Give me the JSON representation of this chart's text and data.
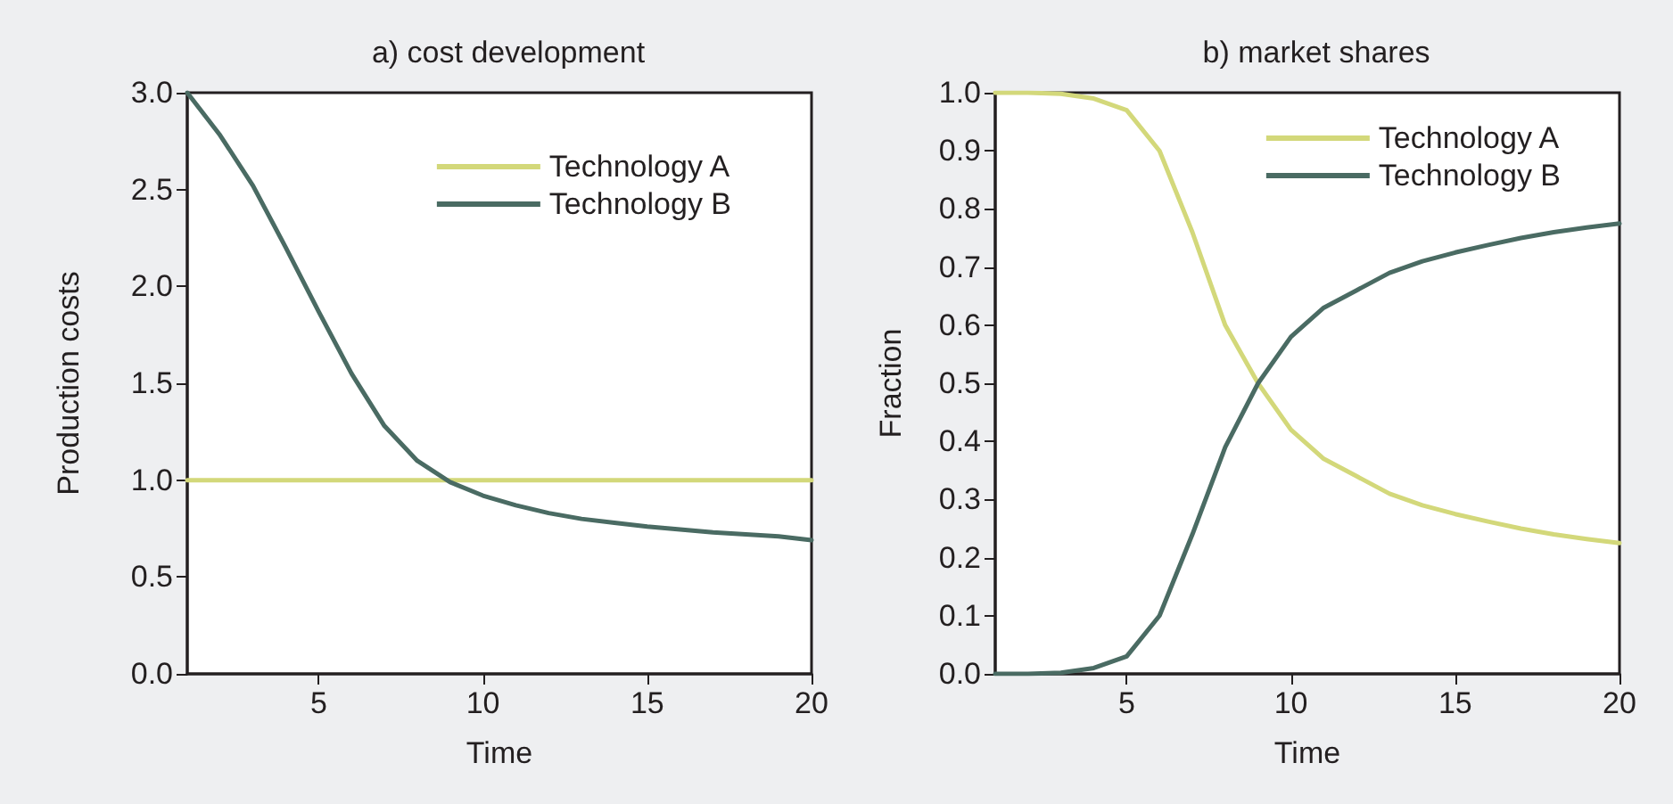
{
  "chart_data": [
    {
      "type": "line",
      "title": "a) cost development",
      "xlabel": "Time",
      "ylabel": "Production costs",
      "x": [
        1,
        2,
        3,
        4,
        5,
        6,
        7,
        8,
        9,
        10,
        11,
        12,
        13,
        14,
        15,
        16,
        17,
        18,
        19,
        20
      ],
      "series": [
        {
          "name": "Technology A",
          "color": "#d3d87a",
          "values": [
            1.0,
            1.0,
            1.0,
            1.0,
            1.0,
            1.0,
            1.0,
            1.0,
            1.0,
            1.0,
            1.0,
            1.0,
            1.0,
            1.0,
            1.0,
            1.0,
            1.0,
            1.0,
            1.0,
            1.0
          ]
        },
        {
          "name": "Technology B",
          "color": "#4a6b63",
          "values": [
            3.0,
            2.78,
            2.52,
            2.2,
            1.87,
            1.55,
            1.28,
            1.1,
            0.99,
            0.92,
            0.87,
            0.83,
            0.8,
            0.78,
            0.76,
            0.745,
            0.73,
            0.72,
            0.71,
            0.69
          ]
        }
      ],
      "xlim": [
        1,
        20
      ],
      "xticks": [
        5,
        10,
        15,
        20
      ],
      "ylim": [
        0,
        3
      ],
      "yticks": [
        {
          "value": 0,
          "label": "0.0"
        },
        {
          "value": 0.5,
          "label": "0.5"
        },
        {
          "value": 1,
          "label": "1.0"
        },
        {
          "value": 1.5,
          "label": "1.5"
        },
        {
          "value": 2,
          "label": "2.0"
        },
        {
          "value": 2.5,
          "label": "2.5"
        },
        {
          "value": 3,
          "label": "3.0"
        }
      ],
      "grid": false,
      "legend": "top right",
      "marker": "none",
      "line_style": "solid"
    },
    {
      "type": "line",
      "title": "b) market shares",
      "xlabel": "Time",
      "ylabel": "Fraction",
      "x": [
        1,
        2,
        3,
        4,
        5,
        6,
        7,
        8,
        9,
        10,
        11,
        12,
        13,
        14,
        15,
        16,
        17,
        18,
        19,
        20
      ],
      "series": [
        {
          "name": "Technology A",
          "color": "#d3d87a",
          "values": [
            1.0,
            1.0,
            0.998,
            0.99,
            0.97,
            0.9,
            0.76,
            0.6,
            0.5,
            0.42,
            0.37,
            0.34,
            0.31,
            0.29,
            0.275,
            0.262,
            0.25,
            0.24,
            0.232,
            0.225
          ]
        },
        {
          "name": "Technology B",
          "color": "#4a6b63",
          "values": [
            0.0,
            0.0,
            0.002,
            0.01,
            0.03,
            0.1,
            0.24,
            0.39,
            0.5,
            0.58,
            0.63,
            0.66,
            0.69,
            0.71,
            0.725,
            0.738,
            0.75,
            0.76,
            0.768,
            0.775
          ]
        }
      ],
      "xlim": [
        1,
        20
      ],
      "xticks": [
        5,
        10,
        15,
        20
      ],
      "ylim": [
        0,
        1
      ],
      "yticks": [
        {
          "value": 0,
          "label": "0.0"
        },
        {
          "value": 0.1,
          "label": "0.1"
        },
        {
          "value": 0.2,
          "label": "0.2"
        },
        {
          "value": 0.3,
          "label": "0.3"
        },
        {
          "value": 0.4,
          "label": "0.4"
        },
        {
          "value": 0.5,
          "label": "0.5"
        },
        {
          "value": 0.6,
          "label": "0.6"
        },
        {
          "value": 0.7,
          "label": "0.7"
        },
        {
          "value": 0.8,
          "label": "0.8"
        },
        {
          "value": 0.9,
          "label": "0.9"
        },
        {
          "value": 1,
          "label": "1.0"
        }
      ],
      "grid": false,
      "legend": "top right",
      "marker": "none",
      "line_style": "solid"
    }
  ]
}
